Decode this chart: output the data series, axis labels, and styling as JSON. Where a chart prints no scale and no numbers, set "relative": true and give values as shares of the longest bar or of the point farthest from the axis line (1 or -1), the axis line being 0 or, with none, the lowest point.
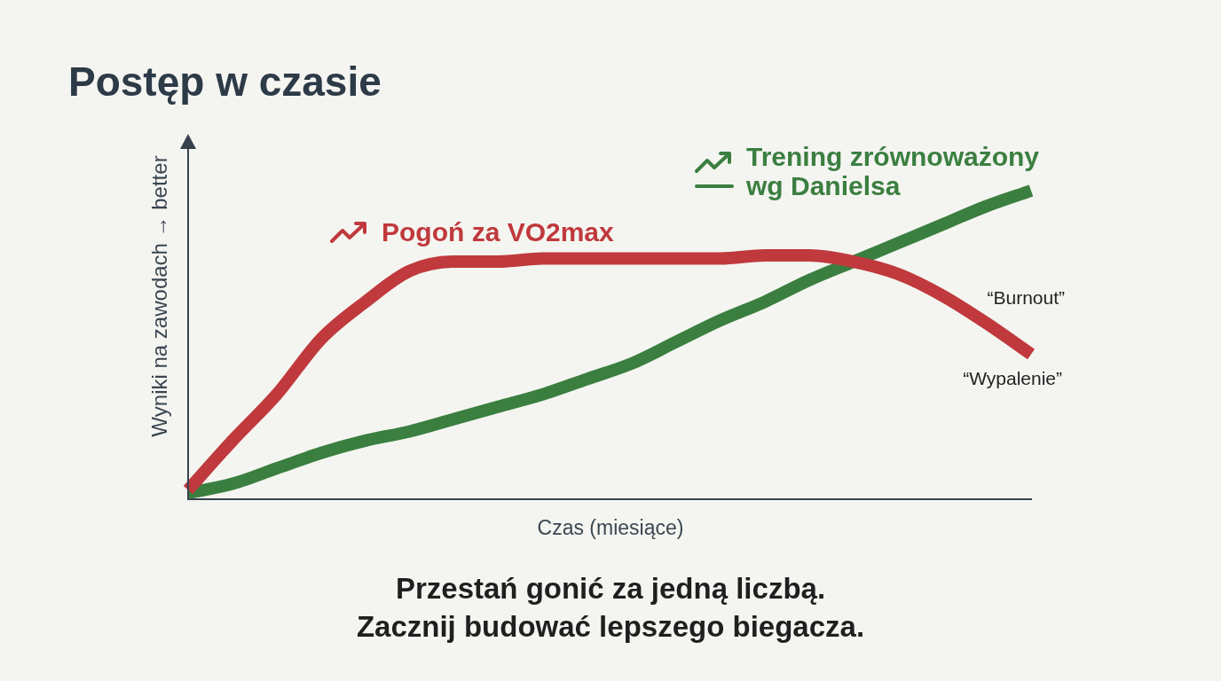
{
  "chart_data": {
    "type": "line",
    "title": "Postęp w czasie",
    "xlabel": "Czas (miesiące)",
    "ylabel": "Wyniki na zawodach → better",
    "relative": true,
    "grid": false,
    "marker": "none",
    "line_style": "solid",
    "legend": "top",
    "categories": [
      null,
      null,
      null,
      null,
      null,
      null,
      null,
      null,
      null,
      null,
      null,
      null,
      null,
      null,
      null,
      null,
      null,
      null,
      null,
      null
    ],
    "series": [
      {
        "name": "Pogoń za VO2max",
        "color": "#c0393c",
        "values": [
          0.03,
          0.19,
          0.34,
          0.52,
          0.64,
          0.74,
          0.77,
          0.77,
          0.78,
          0.78,
          0.78,
          0.78,
          0.78,
          0.79,
          0.79,
          0.77,
          0.73,
          0.66,
          0.57,
          0.47
        ]
      },
      {
        "name": "Trening zrównoważony wg Danielsa",
        "color": "#3b7f40",
        "values": [
          0.02,
          0.05,
          0.1,
          0.15,
          0.19,
          0.22,
          0.26,
          0.3,
          0.34,
          0.39,
          0.44,
          0.51,
          0.58,
          0.64,
          0.71,
          0.77,
          0.83,
          0.89,
          0.95,
          1
        ]
      }
    ],
    "annotations": [
      "“Burnout”",
      "“Wypalenie”",
      "Przestań gonić za jedną liczbą.",
      "Zacznij budować lepszego biegacza."
    ]
  }
}
